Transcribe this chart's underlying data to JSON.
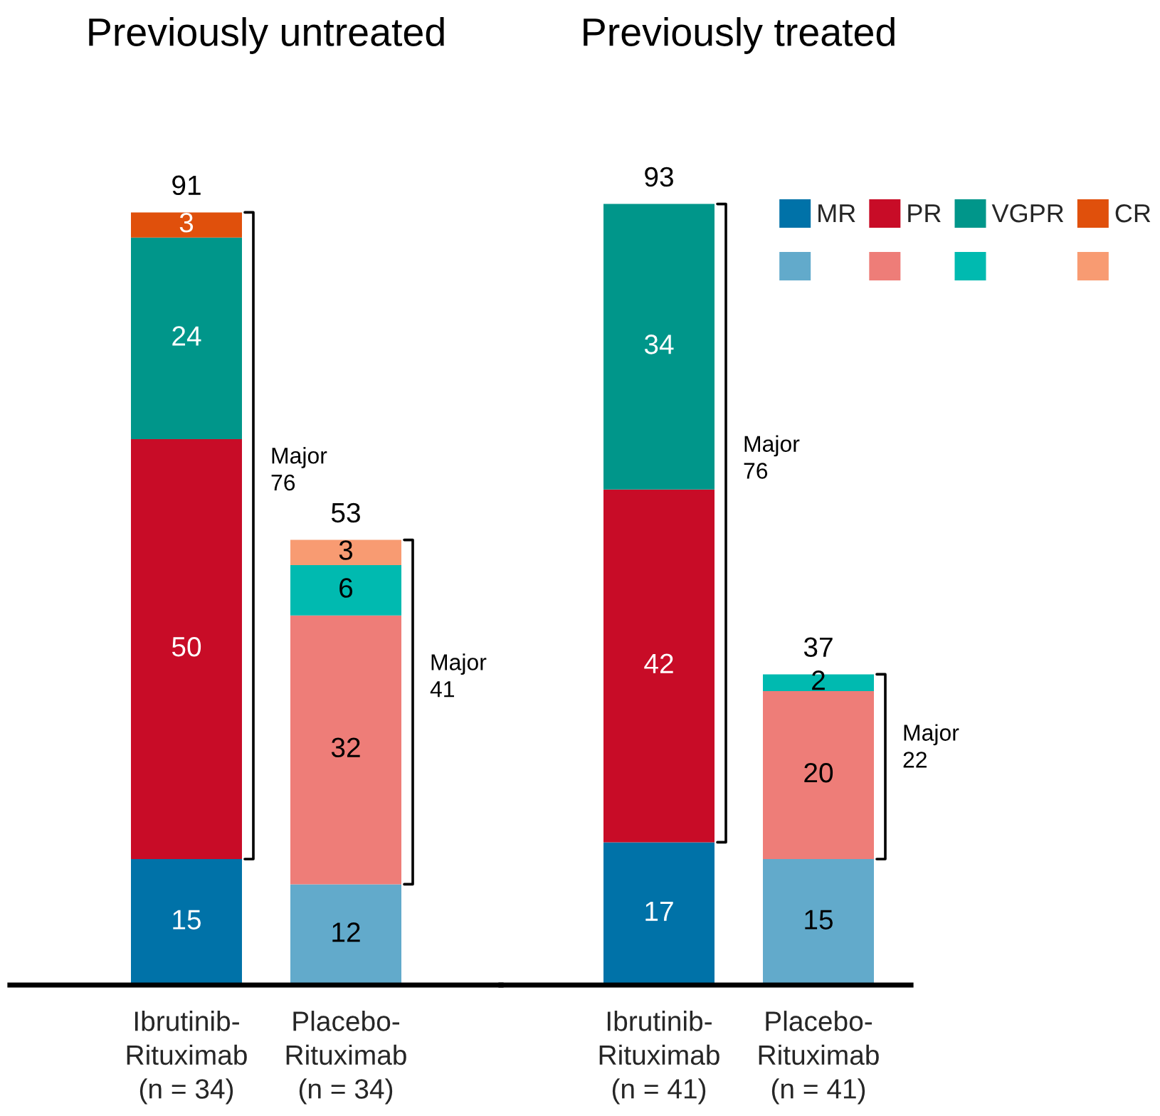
{
  "chart_data": [
    {
      "type": "bar",
      "title": "Previously untreated",
      "categories": [
        "Ibrutinib-\nRituximab\n(n = 34)",
        "Placebo-\nRituximab\n(n = 34)"
      ],
      "stacked": true,
      "tick_labels": "x",
      "data_labels": true,
      "totals": [
        "91",
        "53"
      ],
      "legend": "top right",
      "series": [
        {
          "name": "MR",
          "colors": [
            "#0072a8",
            "#62aacb"
          ],
          "values": [
            15,
            12
          ]
        },
        {
          "name": "PR",
          "colors": [
            "#c80c27",
            "#ee7d78"
          ],
          "values": [
            50,
            32
          ]
        },
        {
          "name": "VGPR",
          "colors": [
            "#00968a",
            "#00bab0"
          ],
          "values": [
            24,
            6
          ]
        },
        {
          "name": "CR",
          "colors": [
            "#e0500c",
            "#f89b72"
          ],
          "values": [
            3,
            3
          ]
        }
      ],
      "annotations": [
        "Major\n76",
        "Major\n41"
      ]
    },
    {
      "type": "bar",
      "title": "Previously treated",
      "categories": [
        "Ibrutinib-\nRituximab\n(n = 41)",
        "Placebo-\nRituximab\n(n = 41)"
      ],
      "stacked": true,
      "tick_labels": "x",
      "data_labels": true,
      "totals": [
        "93",
        "37"
      ],
      "series": [
        {
          "colors": [
            "#0072a8",
            "#62aacb"
          ],
          "values": [
            17,
            15
          ]
        },
        {
          "colors": [
            "#c80c27",
            "#ee7d78"
          ],
          "values": [
            42,
            20
          ]
        },
        {
          "colors": [
            "#00968a",
            "#00bab0"
          ],
          "values": [
            34,
            2
          ]
        }
      ],
      "annotations": [
        "Major\n76",
        "Major\n22"
      ]
    }
  ]
}
